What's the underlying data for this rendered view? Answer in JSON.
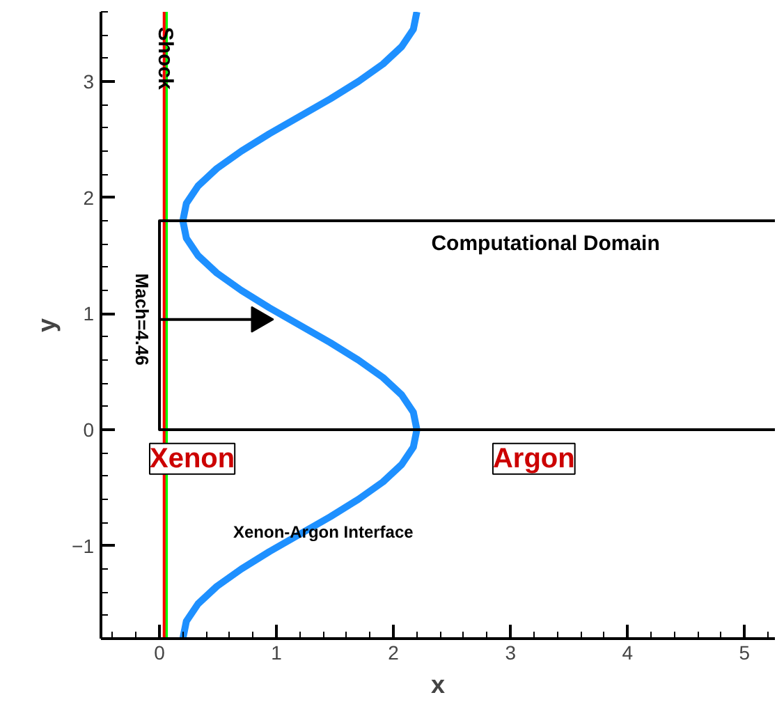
{
  "chart_data": {
    "type": "line",
    "xlabel": "x",
    "ylabel": "y",
    "xlim": [
      -0.5,
      5.26
    ],
    "ylim": [
      -1.8,
      3.6
    ],
    "xticks": [
      0,
      1,
      2,
      3,
      4,
      5
    ],
    "yticks": [
      -1,
      0,
      1,
      2,
      3
    ],
    "grid": false,
    "series": [
      {
        "color": "#00ff00",
        "x": [
          0.06,
          0.06
        ],
        "values": [
          -1.8,
          3.6
        ]
      },
      {
        "color": "#ff0000",
        "x": [
          0.04,
          0.04
        ],
        "values": [
          -1.8,
          3.6
        ]
      },
      {
        "color": "#1e90ff",
        "x": [
          0.2,
          0.23,
          0.33,
          0.49,
          0.7,
          0.94,
          1.2,
          1.46,
          1.7,
          1.91,
          2.07,
          2.17,
          2.2,
          2.17,
          2.07,
          1.91,
          1.7,
          1.46,
          1.2,
          0.94,
          0.7,
          0.49,
          0.33,
          0.23,
          0.2,
          0.23,
          0.33,
          0.49,
          0.7,
          0.94,
          1.2,
          1.46,
          1.7,
          1.91,
          2.07,
          2.17,
          2.2
        ],
        "values": [
          -1.8,
          -1.65,
          -1.5,
          -1.35,
          -1.2,
          -1.05,
          -0.9,
          -0.75,
          -0.6,
          -0.45,
          -0.3,
          -0.15,
          0,
          0.15,
          0.3,
          0.45,
          0.6,
          0.75,
          0.9,
          1.05,
          1.2,
          1.35,
          1.5,
          1.65,
          1.8,
          1.95,
          2.1,
          2.25,
          2.4,
          2.55,
          2.7,
          2.85,
          3.0,
          3.15,
          3.3,
          3.45,
          3.6
        ]
      },
      {
        "color": "#000000",
        "x": [
          5.26,
          0,
          0,
          5.26
        ],
        "values": [
          1.8,
          1.8,
          0,
          0
        ]
      },
      {
        "color": "#000000",
        "x": [
          0,
          0.85
        ],
        "values": [
          0.95,
          0.95
        ],
        "marker": "triangle"
      }
    ],
    "annotations": [
      "Shock",
      "Mach=4.46",
      "Computational Domain",
      "Xenon",
      "Argon",
      "Xenon-Argon Interface"
    ]
  }
}
